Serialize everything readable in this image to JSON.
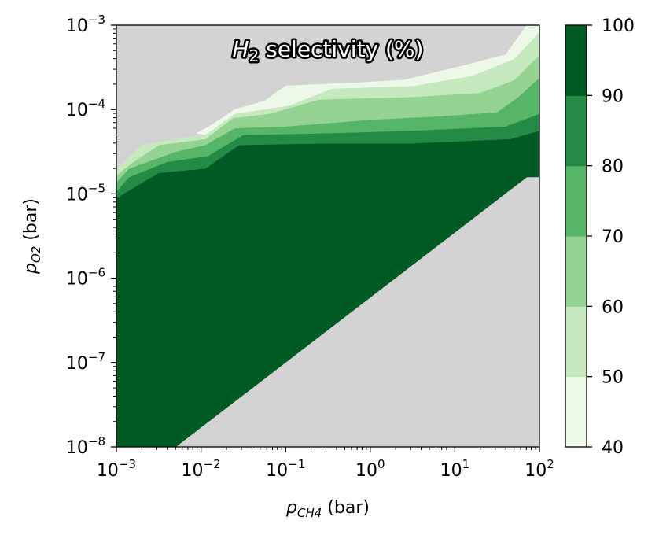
{
  "chart_data": {
    "type": "heatmap",
    "title_main": "H",
    "title_sub": "2",
    "title_rest": " selectivity (%)",
    "xlabel_var": "p",
    "xlabel_sub": "CH4",
    "xlabel_unit": " (bar)",
    "ylabel_var": "p",
    "ylabel_sub": "O2",
    "ylabel_unit": " (bar)",
    "xscale": "log",
    "yscale": "log",
    "xlim": [
      0.001,
      100
    ],
    "ylim": [
      1e-08,
      0.001
    ],
    "x_ticks": [
      {
        "base": "10",
        "exp": "−3",
        "value": -3
      },
      {
        "base": "10",
        "exp": "−2",
        "value": -2
      },
      {
        "base": "10",
        "exp": "−1",
        "value": -1
      },
      {
        "base": "10",
        "exp": "0",
        "value": 0
      },
      {
        "base": "10",
        "exp": "1",
        "value": 1
      },
      {
        "base": "10",
        "exp": "2",
        "value": 2
      }
    ],
    "y_ticks": [
      {
        "base": "10",
        "exp": "−8",
        "value": -8
      },
      {
        "base": "10",
        "exp": "−7",
        "value": -7
      },
      {
        "base": "10",
        "exp": "−6",
        "value": -6
      },
      {
        "base": "10",
        "exp": "−5",
        "value": -5
      },
      {
        "base": "10",
        "exp": "−4",
        "value": -4
      },
      {
        "base": "10",
        "exp": "−3",
        "value": -3
      }
    ],
    "no_data_color": "#d3d3d3",
    "colorbar": {
      "ticks": [
        "40",
        "50",
        "60",
        "70",
        "80",
        "90",
        "100"
      ],
      "levels": [
        40,
        50,
        60,
        70,
        80,
        90,
        100
      ],
      "colors": [
        "#edf8e9",
        "#c7e9c0",
        "#94d391",
        "#56b567",
        "#238b45",
        "#005a24"
      ]
    },
    "regions": [
      {
        "level": "90-100",
        "color": "#005a24",
        "log_points": [
          [
            -3,
            -8
          ],
          [
            -2.3,
            -8
          ],
          [
            1.85,
            -4.8
          ],
          [
            2,
            -4.8
          ],
          [
            2,
            -4.25
          ],
          [
            1.65,
            -4.35
          ],
          [
            0.5,
            -4.4
          ],
          [
            -0.5,
            -4.4
          ],
          [
            -1.55,
            -4.42
          ],
          [
            -1.95,
            -4.7
          ],
          [
            -2.5,
            -4.75
          ],
          [
            -3,
            -5.05
          ]
        ]
      },
      {
        "level": "80-90",
        "color": "#238b45",
        "log_points": [
          [
            -3,
            -5.05
          ],
          [
            -2.5,
            -4.75
          ],
          [
            -1.95,
            -4.7
          ],
          [
            -1.55,
            -4.42
          ],
          [
            -0.5,
            -4.4
          ],
          [
            0.5,
            -4.4
          ],
          [
            1.65,
            -4.35
          ],
          [
            2,
            -4.25
          ],
          [
            2,
            -4.05
          ],
          [
            1.6,
            -4.2
          ],
          [
            0.5,
            -4.25
          ],
          [
            -0.5,
            -4.28
          ],
          [
            -1.5,
            -4.3
          ],
          [
            -1.92,
            -4.55
          ],
          [
            -2.4,
            -4.62
          ],
          [
            -2.85,
            -4.8
          ],
          [
            -3,
            -4.97
          ]
        ]
      },
      {
        "level": "70-80",
        "color": "#56b567",
        "log_points": [
          [
            -3,
            -4.97
          ],
          [
            -2.85,
            -4.8
          ],
          [
            -2.4,
            -4.62
          ],
          [
            -1.92,
            -4.55
          ],
          [
            -1.5,
            -4.3
          ],
          [
            -0.5,
            -4.28
          ],
          [
            0.5,
            -4.25
          ],
          [
            1.6,
            -4.2
          ],
          [
            2,
            -4.05
          ],
          [
            2,
            -3.62
          ],
          [
            1.75,
            -3.85
          ],
          [
            1.5,
            -4.03
          ],
          [
            0.8,
            -4.08
          ],
          [
            0,
            -4.12
          ],
          [
            -1,
            -4.2
          ],
          [
            -1.6,
            -4.22
          ],
          [
            -1.95,
            -4.42
          ],
          [
            -2.3,
            -4.5
          ],
          [
            -2.85,
            -4.7
          ],
          [
            -3,
            -4.86
          ]
        ]
      },
      {
        "level": "60-70",
        "color": "#94d391",
        "log_points": [
          [
            -3,
            -4.86
          ],
          [
            -2.85,
            -4.7
          ],
          [
            -2.3,
            -4.5
          ],
          [
            -1.95,
            -4.42
          ],
          [
            -1.6,
            -4.22
          ],
          [
            -1,
            -4.2
          ],
          [
            0,
            -4.12
          ],
          [
            0.8,
            -4.08
          ],
          [
            1.5,
            -4.03
          ],
          [
            1.75,
            -3.85
          ],
          [
            2,
            -3.62
          ],
          [
            2,
            -3.35
          ],
          [
            1.7,
            -3.65
          ],
          [
            1.3,
            -3.8
          ],
          [
            0.5,
            -3.85
          ],
          [
            -0.6,
            -3.88
          ],
          [
            -1.2,
            -4.05
          ],
          [
            -1.62,
            -4.1
          ],
          [
            -1.95,
            -4.35
          ],
          [
            -2.5,
            -4.42
          ],
          [
            -2.8,
            -4.62
          ],
          [
            -3,
            -4.78
          ]
        ]
      },
      {
        "level": "50-60",
        "color": "#c7e9c0",
        "log_points": [
          [
            -3,
            -4.78
          ],
          [
            -2.8,
            -4.62
          ],
          [
            -2.5,
            -4.42
          ],
          [
            -1.95,
            -4.35
          ],
          [
            -1.62,
            -4.1
          ],
          [
            -1.2,
            -4.05
          ],
          [
            -0.6,
            -3.88
          ],
          [
            0.5,
            -3.85
          ],
          [
            1.3,
            -3.8
          ],
          [
            1.7,
            -3.65
          ],
          [
            2,
            -3.35
          ],
          [
            2,
            -3.08
          ],
          [
            1.7,
            -3.4
          ],
          [
            1.2,
            -3.6
          ],
          [
            0.5,
            -3.72
          ],
          [
            -0.45,
            -3.75
          ],
          [
            -0.95,
            -3.95
          ],
          [
            -1.6,
            -4.05
          ],
          [
            -1.95,
            -4.3
          ],
          [
            -2.7,
            -4.42
          ],
          [
            -3,
            -4.72
          ]
        ]
      },
      {
        "level": "40-50",
        "color": "#edf8e9",
        "log_points": [
          [
            -2.05,
            -4.28
          ],
          [
            -1.95,
            -4.3
          ],
          [
            -1.6,
            -4.05
          ],
          [
            -0.95,
            -3.95
          ],
          [
            -0.45,
            -3.75
          ],
          [
            0.5,
            -3.72
          ],
          [
            1.2,
            -3.6
          ],
          [
            1.7,
            -3.4
          ],
          [
            2,
            -3.08
          ],
          [
            2,
            -3
          ],
          [
            1.85,
            -3
          ],
          [
            1.6,
            -3.35
          ],
          [
            1.1,
            -3.48
          ],
          [
            0.4,
            -3.65
          ],
          [
            -0.1,
            -3.68
          ],
          [
            -1.0,
            -3.72
          ],
          [
            -1.25,
            -3.9
          ],
          [
            -1.6,
            -4.0
          ],
          [
            -1.9,
            -4.2
          ]
        ]
      }
    ]
  }
}
